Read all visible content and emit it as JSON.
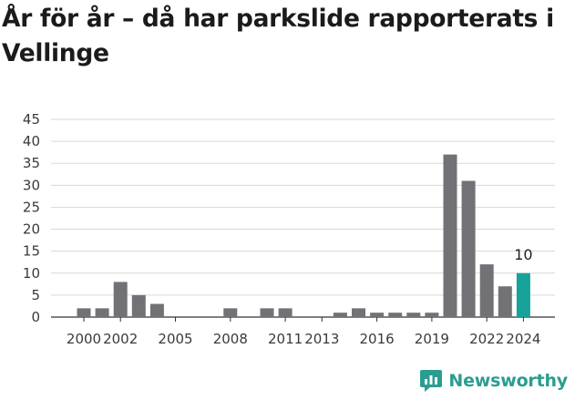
{
  "title": "År för år – då har parkslide rapporterats i Vellinge",
  "brand": {
    "name": "Newsworthy",
    "logo_icon": "newsworthy-logo-icon"
  },
  "colors": {
    "bar": "#727276",
    "highlight": "#17a29a",
    "grid": "#d9d9d9",
    "axis": "#333333"
  },
  "chart_data": {
    "type": "bar",
    "title": "År för år – då har parkslide rapporterats i Vellinge",
    "xlabel": "",
    "ylabel": "",
    "categories": [
      "2000",
      "2001",
      "2002",
      "2003",
      "2004",
      "2005",
      "2006",
      "2007",
      "2008",
      "2009",
      "2010",
      "2011",
      "2012",
      "2013",
      "2014",
      "2015",
      "2016",
      "2017",
      "2018",
      "2019",
      "2020",
      "2021",
      "2022",
      "2023",
      "2024"
    ],
    "values": [
      2,
      2,
      8,
      5,
      3,
      0,
      0,
      0,
      2,
      0,
      2,
      2,
      0,
      0,
      1,
      2,
      1,
      1,
      1,
      1,
      37,
      31,
      12,
      7,
      10
    ],
    "x_tick_labels": [
      "2000",
      "2002",
      "2005",
      "2008",
      "2011",
      "2013",
      "2016",
      "2019",
      "2022",
      "2024"
    ],
    "y_ticks": [
      0,
      5,
      10,
      15,
      20,
      25,
      30,
      35,
      40,
      45
    ],
    "ylim": [
      0,
      45
    ],
    "highlight_category": "2024",
    "highlight_label": "10",
    "grid": true,
    "legend": "none"
  }
}
